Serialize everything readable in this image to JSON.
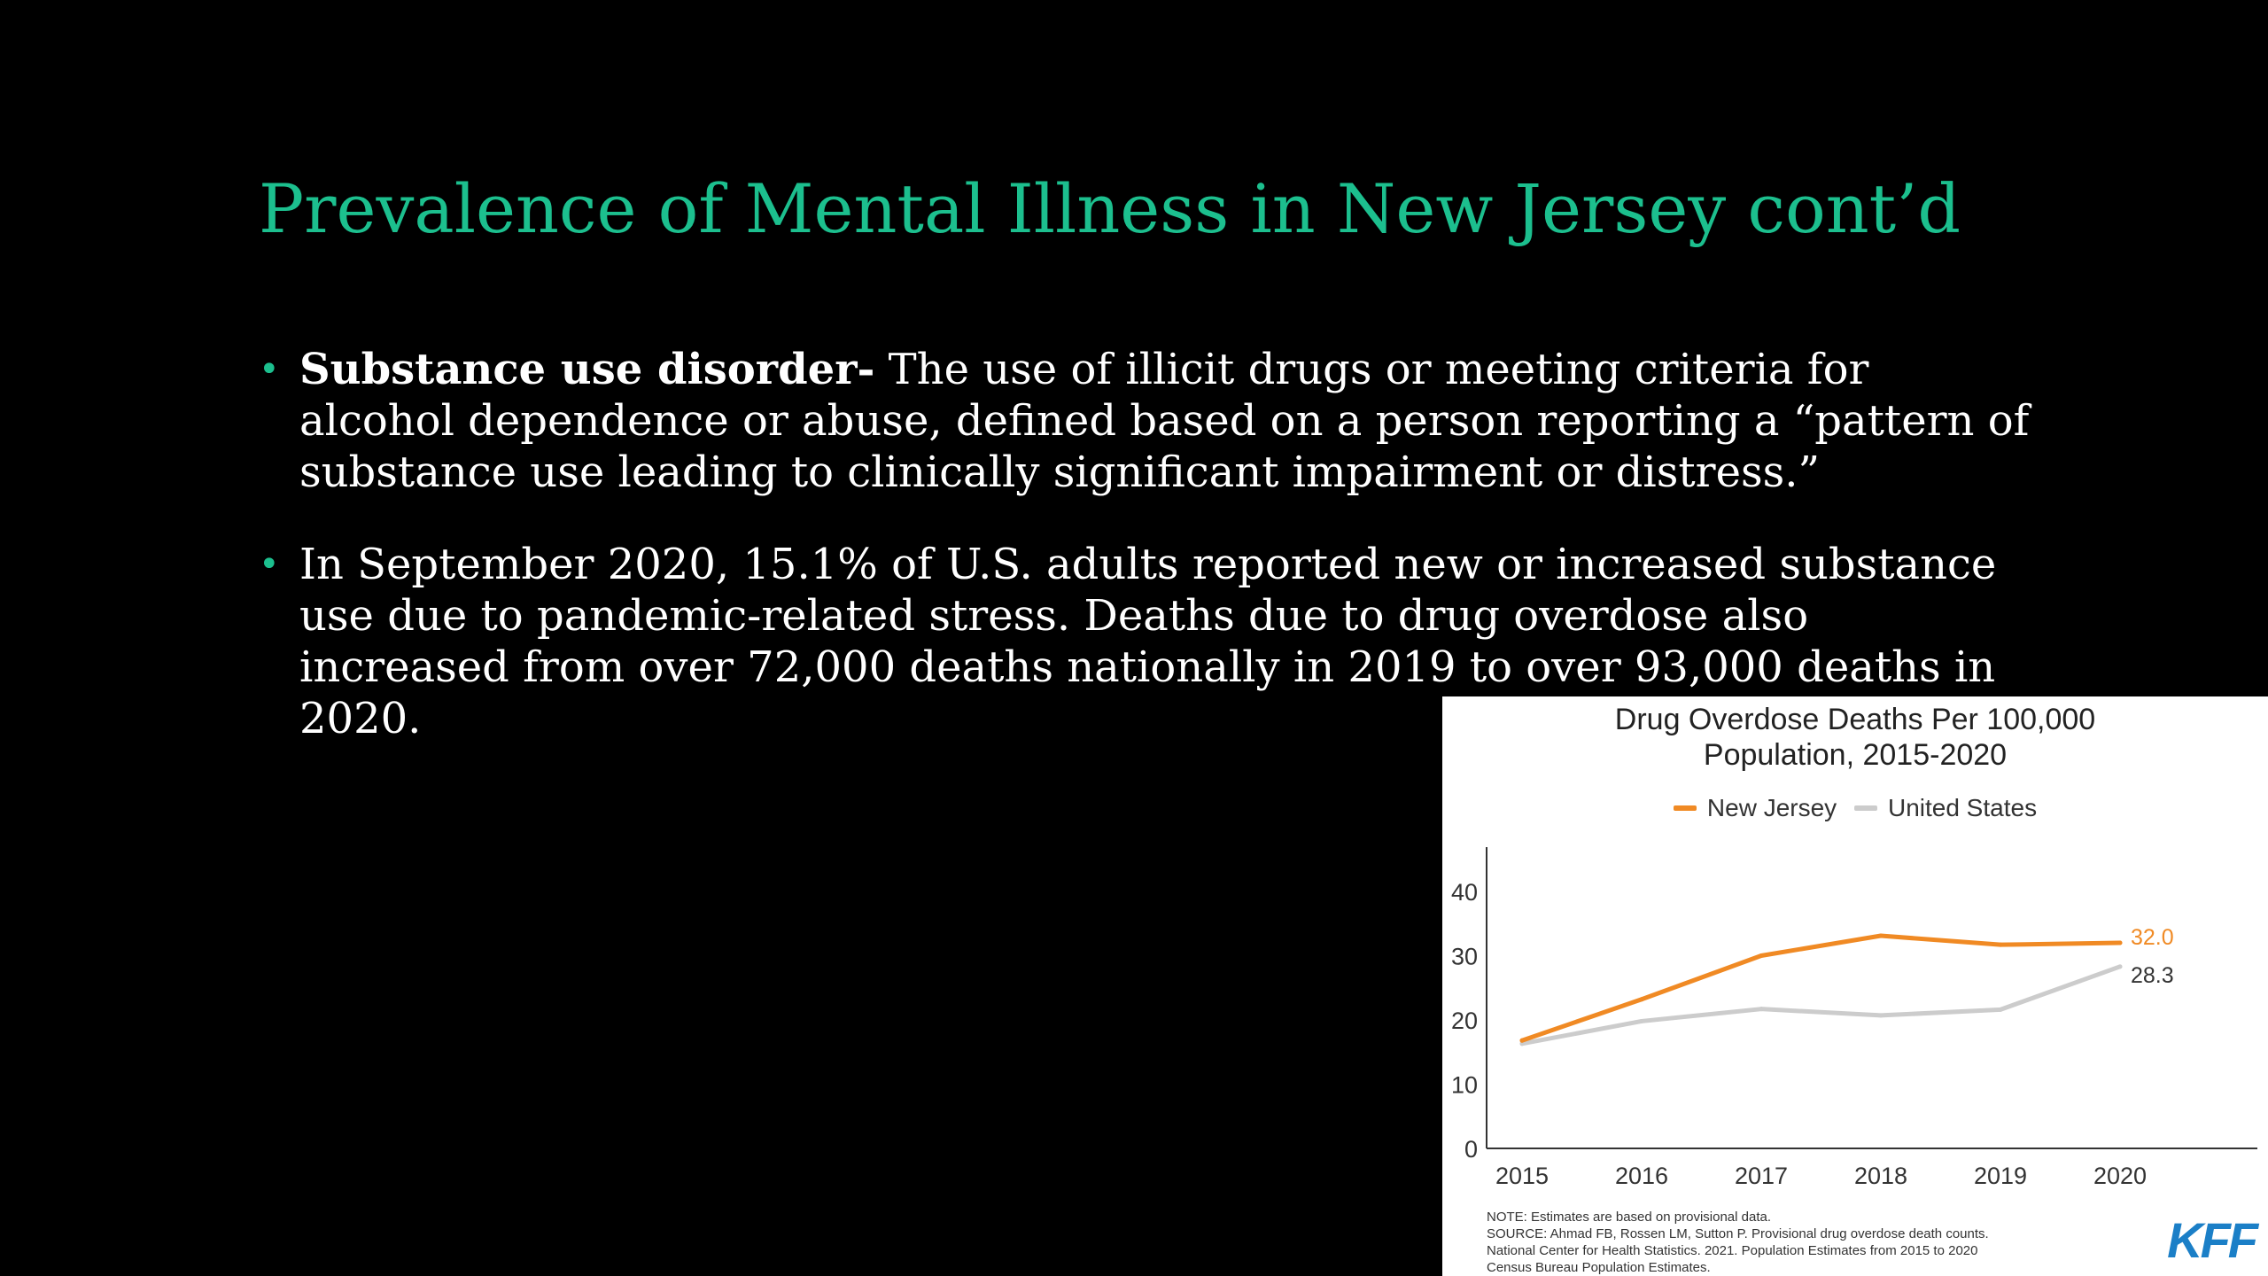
{
  "slide": {
    "title": "Prevalence of Mental Illness in New Jersey cont’d",
    "bullets": [
      {
        "bold": "Substance use disorder-",
        "text": " The use of illicit drugs or meeting criteria for alcohol dependence or abuse, defined based on a person reporting a “pattern of substance use leading to clinically significant impairment or distress.”"
      },
      {
        "bold": "",
        "text": "In September 2020, 15.1% of U.S. adults reported new or increased substance use due to pandemic-related stress. Deaths due to drug overdose also increased from over 72,000 deaths nationally in 2019 to over 93,000 deaths in 2020."
      }
    ],
    "bullet_glyph": "•"
  },
  "chart_data": {
    "type": "line",
    "title_line1": "Drug Overdose Deaths Per 100,000",
    "title_line2": "Population, 2015-2020",
    "x": [
      "2015",
      "2016",
      "2017",
      "2018",
      "2019",
      "2020"
    ],
    "ylim": [
      0,
      40
    ],
    "yticks": [
      0,
      10,
      20,
      30,
      40
    ],
    "grid": false,
    "legend_position": "top-center",
    "series": [
      {
        "name": "New Jersey",
        "values": [
          16.8,
          23.2,
          30.0,
          33.1,
          31.7,
          32.0
        ],
        "color": "#f08a24",
        "end_label": "32.0"
      },
      {
        "name": "United States",
        "values": [
          16.3,
          19.8,
          21.7,
          20.7,
          21.6,
          28.3
        ],
        "color": "#cccccc",
        "end_label": "28.3",
        "end_label_color": "#333333"
      }
    ],
    "note": "NOTE: Estimates are based on provisional data.",
    "source_lines": [
      "SOURCE: Ahmad FB, Rossen LM, Sutton P. Provisional drug overdose death counts.",
      "National Center for Health Statistics. 2021. Population Estimates from 2015 to 2020",
      "Census Bureau Population Estimates."
    ],
    "logo_text": "KFF",
    "logo_color": "#1b7fc7"
  }
}
